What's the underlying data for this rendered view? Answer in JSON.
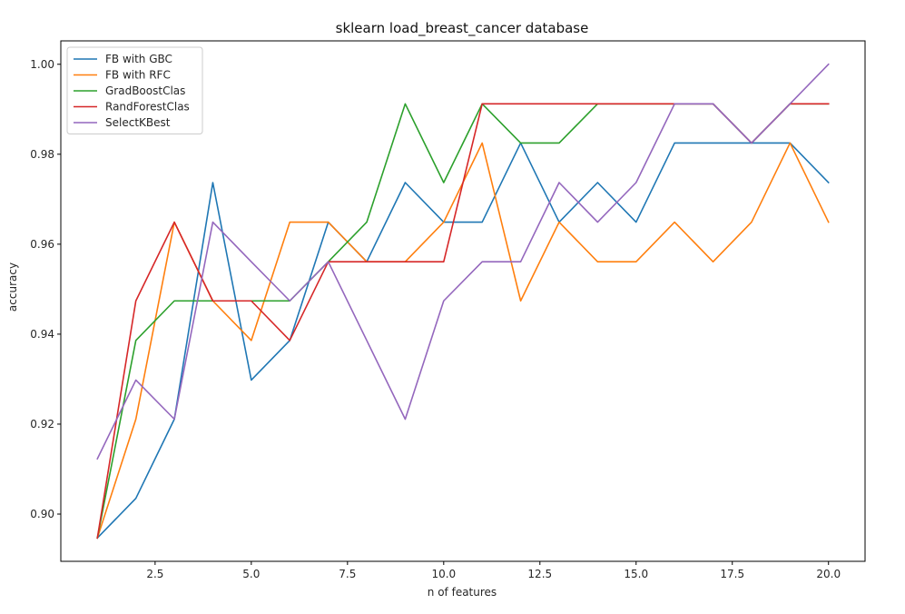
{
  "chart_data": {
    "type": "line",
    "title": "sklearn load_breast_cancer database",
    "xlabel": "n of features",
    "ylabel": "accuracy",
    "xlim": [
      0.05,
      20.95
    ],
    "ylim": [
      0.8895,
      1.0052
    ],
    "xticks": [
      2.5,
      5.0,
      7.5,
      10.0,
      12.5,
      15.0,
      17.5,
      20.0
    ],
    "xtick_labels": [
      "2.5",
      "5.0",
      "7.5",
      "10.0",
      "12.5",
      "15.0",
      "17.5",
      "20.0"
    ],
    "yticks": [
      0.9,
      0.92,
      0.94,
      0.96,
      0.98,
      1.0
    ],
    "ytick_labels": [
      "0.90",
      "0.92",
      "0.94",
      "0.96",
      "0.98",
      "1.00"
    ],
    "grid": false,
    "legend_position": "upper-left",
    "x": [
      1,
      2,
      3,
      4,
      5,
      6,
      7,
      8,
      9,
      10,
      11,
      12,
      13,
      14,
      15,
      16,
      17,
      18,
      19,
      20
    ],
    "series": [
      {
        "name": "FB with GBC",
        "color": "#1f77b4",
        "values": [
          0.8947,
          0.9035,
          0.9211,
          0.9737,
          0.9298,
          0.9386,
          0.9649,
          0.9561,
          0.9737,
          0.9649,
          0.9649,
          0.9825,
          0.9649,
          0.9737,
          0.9649,
          0.9825,
          0.9825,
          0.9825,
          0.9825,
          0.9737
        ]
      },
      {
        "name": "FB with RFC",
        "color": "#ff7f0e",
        "values": [
          0.8947,
          0.9211,
          0.9649,
          0.9474,
          0.9386,
          0.9649,
          0.9649,
          0.9561,
          0.9561,
          0.9649,
          0.9825,
          0.9474,
          0.9649,
          0.9561,
          0.9561,
          0.9649,
          0.9561,
          0.9649,
          0.9825,
          0.9649
        ]
      },
      {
        "name": "GradBoostClas",
        "color": "#2ca02c",
        "values": [
          0.8947,
          0.9386,
          0.9474,
          0.9474,
          0.9474,
          0.9474,
          0.9561,
          0.9649,
          0.9912,
          0.9737,
          0.9912,
          0.9825,
          0.9825,
          0.9912,
          0.9912,
          0.9912,
          0.9912,
          0.9825,
          0.9912,
          0.9912
        ]
      },
      {
        "name": "RandForestClas",
        "color": "#d62728",
        "values": [
          0.8947,
          0.9474,
          0.9649,
          0.9474,
          0.9474,
          0.9386,
          0.9561,
          0.9561,
          0.9561,
          0.9561,
          0.9912,
          0.9912,
          0.9912,
          0.9912,
          0.9912,
          0.9912,
          0.9912,
          0.9825,
          0.9912,
          0.9912
        ]
      },
      {
        "name": "SelectKBest",
        "color": "#9467bd",
        "values": [
          0.9123,
          0.9298,
          0.9211,
          0.9649,
          0.9561,
          0.9474,
          0.9561,
          0.9386,
          0.9211,
          0.9474,
          0.9561,
          0.9561,
          0.9737,
          0.9649,
          0.9737,
          0.9912,
          0.9912,
          0.9825,
          0.9912,
          1.0
        ]
      }
    ]
  }
}
